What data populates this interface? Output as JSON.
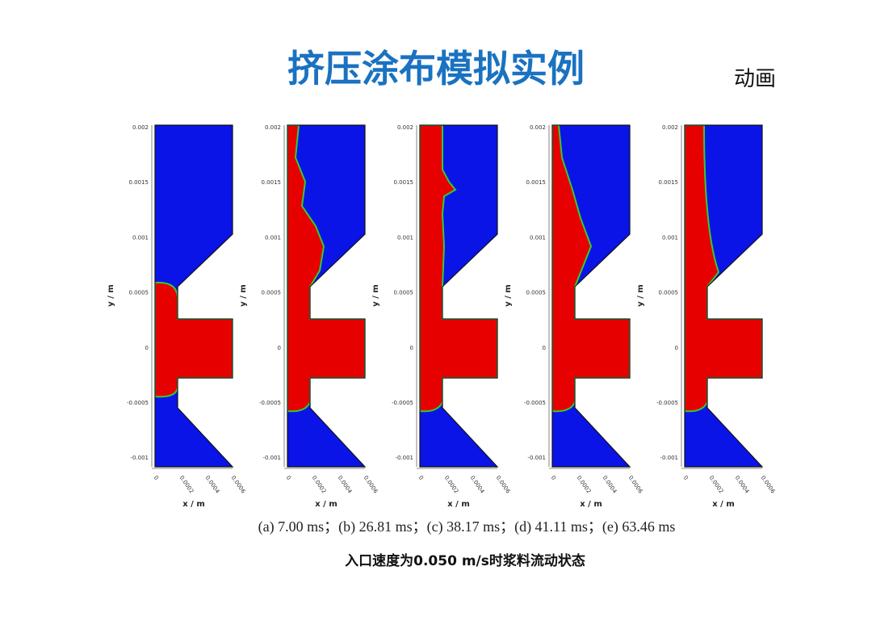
{
  "header": {
    "title": "挤压涂布模拟实例",
    "link": "动画"
  },
  "axes": {
    "y_label": "y / m",
    "x_label": "x / m",
    "y_ticks": [
      "0.002",
      "0.0015",
      "0.001",
      "0.0005",
      "0",
      "-0.0005",
      "-0.001"
    ],
    "x_ticks": [
      "0",
      "0.0002",
      "0.0004",
      "0.0006"
    ]
  },
  "caption": "(a) 7.00 ms；(b) 26.81 ms；(c) 38.17 ms；(d) 41.11 ms；(e) 63.46 ms",
  "subtitle": "入口速度为0.050 m/s时浆料流动状态"
}
